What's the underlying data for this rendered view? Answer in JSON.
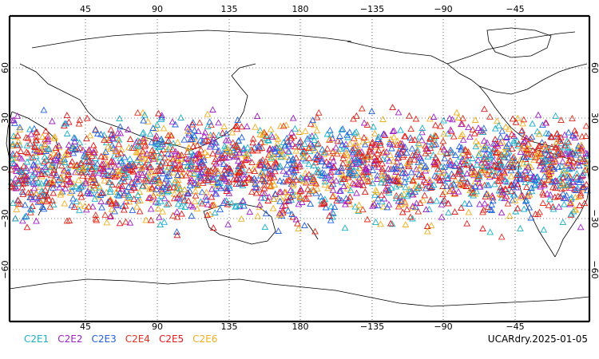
{
  "map": {
    "top_lon_labels": [
      "45",
      "90",
      "135",
      "180",
      "−135",
      "−90",
      "−45"
    ],
    "bottom_lon_labels": [
      "45",
      "90",
      "135",
      "180",
      "−135",
      "−90",
      "−45"
    ],
    "lat_labels": [
      "60",
      "30",
      "0",
      "−30",
      "−60"
    ]
  },
  "legend": [
    {
      "label": "C2E1",
      "color": "#1ab0c8"
    },
    {
      "label": "C2E2",
      "color": "#a020c8"
    },
    {
      "label": "C2E3",
      "color": "#2060e0"
    },
    {
      "label": "C2E4",
      "color": "#e03020"
    },
    {
      "label": "C2E5",
      "color": "#e01818"
    },
    {
      "label": "C2E6",
      "color": "#f0b020"
    }
  ],
  "source_label": "UCARdry.2025-01-05",
  "observations": {
    "marker": "triangle-icon",
    "lat_range": [
      -45,
      45
    ],
    "lon_range": [
      0,
      360
    ]
  }
}
